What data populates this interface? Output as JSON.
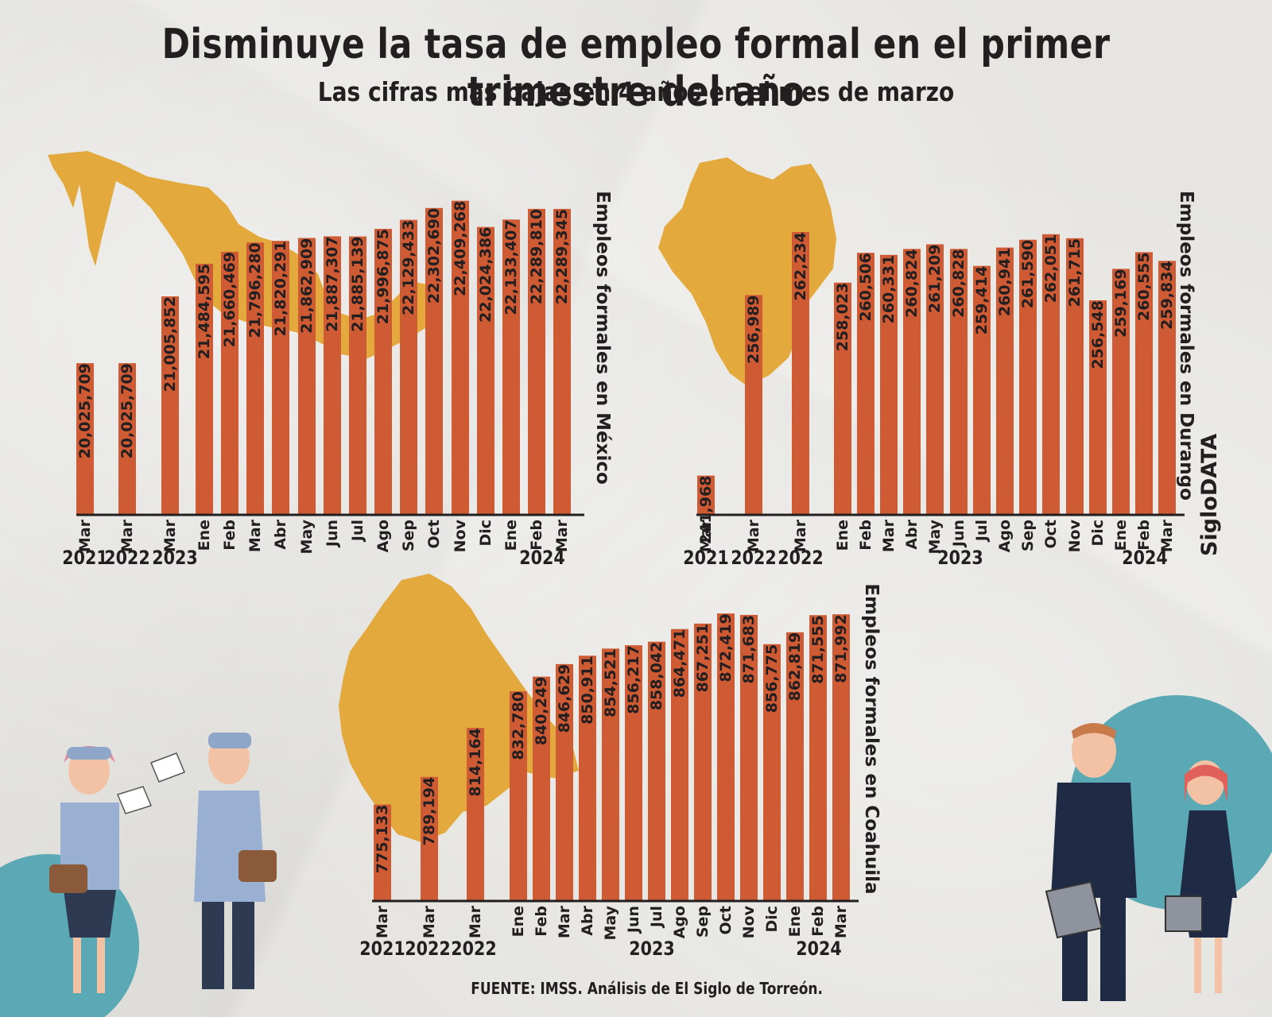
{
  "title": "Disminuye la tasa de empleo formal en el primer trimestre del año",
  "subtitle": "Las cifras mas bajas en 4 años en el mes de marzo",
  "brand": "SigloDATA",
  "source": "FUENTE: IMSS. Análisis de El Siglo de Torreón.",
  "colors": {
    "bar": "#cf5b35",
    "map": "#e3a93c",
    "teal": "#5ba9b4",
    "axis": "#231f20"
  },
  "chart_data": [
    {
      "type": "bar",
      "ylabel": "Empleos formales en México",
      "categories": [
        "Mar",
        "Mar",
        "Mar",
        "Ene",
        "Feb",
        "Mar",
        "Abr",
        "May",
        "Jun",
        "Jul",
        "Ago",
        "Sep",
        "Oct",
        "Nov",
        "Dic",
        "Ene",
        "Feb",
        "Mar"
      ],
      "year_labels": [
        "2021",
        "2022",
        "2023",
        "",
        "",
        "",
        "",
        "",
        "",
        "",
        "",
        "",
        "",
        "",
        "",
        "",
        "2024",
        ""
      ],
      "values": [
        20025709,
        20025709,
        21005852,
        21484595,
        21660469,
        21796280,
        21820291,
        21862909,
        21887307,
        21885139,
        21996875,
        22129433,
        22302690,
        22409268,
        22024386,
        22133407,
        22289810,
        22289345
      ],
      "labels": [
        "20,025,709",
        "20,025,709",
        "21,005,852",
        "21,484,595",
        "21,660,469",
        "21,796,280",
        "21,820,291",
        "21,862,909",
        "21,887,307",
        "21,885,139",
        "21,996,875",
        "22,129,433",
        "22,302,690",
        "22,409,268",
        "22,024,386",
        "22,133,407",
        "22,289,810",
        "22,289,345"
      ],
      "ylim": [
        17800000,
        22650000
      ]
    },
    {
      "type": "bar",
      "ylabel": "Empleos formales en Durango",
      "categories": [
        "Mar",
        "Mar",
        "Mar",
        "Ene",
        "Feb",
        "Mar",
        "Abr",
        "May",
        "Jun",
        "Jul",
        "Ago",
        "Sep",
        "Oct",
        "Nov",
        "Dic",
        "Ene",
        "Feb",
        "Mar"
      ],
      "year_labels": [
        "2021",
        "2022",
        "2022",
        "",
        "",
        "",
        "",
        "",
        "",
        "2023",
        "",
        "",
        "",
        "",
        "",
        "",
        "2024",
        ""
      ],
      "values": [
        241968,
        256989,
        262234,
        258023,
        260506,
        260331,
        260824,
        261209,
        260828,
        259414,
        260941,
        261590,
        262051,
        261715,
        256548,
        259169,
        260555,
        259834
      ],
      "labels": [
        "241,968",
        "256,989",
        "262,234",
        "258,023",
        "260,506",
        "260,331",
        "260,824",
        "261,209",
        "260,828",
        "259,414",
        "260,941",
        "261,590",
        "262,051",
        "261,715",
        "256,548",
        "259,169",
        "260,555",
        "259,834"
      ],
      "ylim": [
        238700,
        266200
      ]
    },
    {
      "type": "bar",
      "ylabel": "Empleos formales en Coahuila",
      "categories": [
        "Mar",
        "Mar",
        "Mar",
        "Ene",
        "Feb",
        "Mar",
        "Abr",
        "May",
        "Jun",
        "Jul",
        "Ago",
        "Sep",
        "Oct",
        "Nov",
        "Dic",
        "Ene",
        "Feb",
        "Mar"
      ],
      "year_labels": [
        "2021",
        "2022",
        "2022",
        "",
        "",
        "",
        "",
        "",
        "2023",
        "",
        "",
        "",
        "",
        "",
        "",
        "",
        "2024",
        ""
      ],
      "values": [
        775133,
        789194,
        814164,
        832780,
        840249,
        846629,
        850911,
        854521,
        856217,
        858042,
        864471,
        867251,
        872419,
        871683,
        856775,
        862819,
        871555,
        871992
      ],
      "labels": [
        "775,133",
        "789,194",
        "814,164",
        "832,780",
        "840,249",
        "846,629",
        "850,911",
        "854,521",
        "856,217",
        "858,042",
        "864,471",
        "867,251",
        "872,419",
        "871,683",
        "856,775",
        "862,819",
        "871,555",
        "871,992"
      ],
      "ylim": [
        726000,
        885000
      ]
    }
  ]
}
